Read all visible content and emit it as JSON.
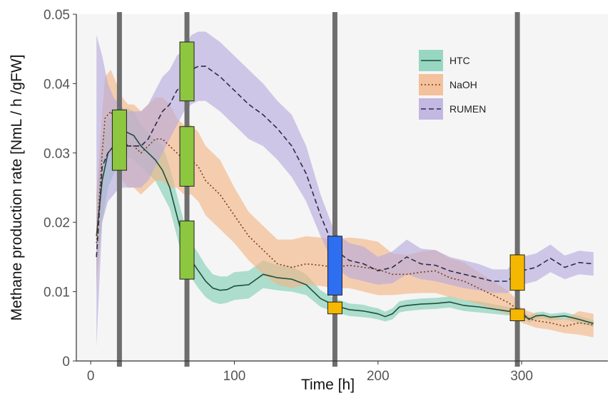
{
  "chart_data": {
    "type": "line",
    "title": "",
    "xlabel": "Time [h]",
    "ylabel": "Methane production rate [NmL / h /gFW]",
    "xlim": [
      -10,
      360
    ],
    "ylim": [
      0,
      0.05
    ],
    "x_ticks": [
      0,
      100,
      200,
      300
    ],
    "x_tick_labels": [
      "0",
      "100",
      "200",
      "300"
    ],
    "y_ticks": [
      0,
      0.01,
      0.02,
      0.03,
      0.04,
      0.05
    ],
    "y_tick_labels": [
      "0",
      "0.01",
      "0.02",
      "0.03",
      "0.04",
      "0.05"
    ],
    "grid": false,
    "background": "#f5f5f5",
    "legend": {
      "position": "top-right",
      "entries": [
        "HTC",
        "NaOH",
        "RUMEN"
      ]
    },
    "vertical_lines": [
      20,
      67,
      170,
      297
    ],
    "series": [
      {
        "name": "HTC",
        "line_color": "#1d4f3c",
        "band_color": "#7fcfb4",
        "dash": "solid",
        "x": [
          4,
          8,
          12,
          16,
          20,
          25,
          30,
          35,
          40,
          45,
          50,
          55,
          60,
          65,
          67,
          70,
          75,
          80,
          85,
          90,
          95,
          100,
          110,
          120,
          130,
          140,
          150,
          160,
          170,
          180,
          190,
          195,
          200,
          205,
          210,
          215,
          220,
          230,
          240,
          250,
          260,
          270,
          280,
          290,
          297,
          300,
          305,
          310,
          315,
          320,
          330,
          340,
          350
        ],
        "y": [
          0.018,
          0.026,
          0.03,
          0.031,
          0.032,
          0.033,
          0.0325,
          0.031,
          0.03,
          0.029,
          0.0275,
          0.025,
          0.021,
          0.017,
          0.016,
          0.0145,
          0.013,
          0.0115,
          0.0105,
          0.0102,
          0.0103,
          0.0108,
          0.011,
          0.0125,
          0.012,
          0.0118,
          0.011,
          0.009,
          0.008,
          0.0074,
          0.0072,
          0.007,
          0.0068,
          0.0064,
          0.0068,
          0.0078,
          0.008,
          0.0082,
          0.0083,
          0.0085,
          0.008,
          0.0078,
          0.0075,
          0.0072,
          0.0071,
          0.007,
          0.006,
          0.0065,
          0.0066,
          0.0063,
          0.0065,
          0.006,
          0.0054
        ],
        "lower": [
          0.012,
          0.02,
          0.025,
          0.027,
          0.028,
          0.0295,
          0.029,
          0.028,
          0.027,
          0.026,
          0.024,
          0.022,
          0.018,
          0.014,
          0.013,
          0.012,
          0.0105,
          0.0092,
          0.0085,
          0.0082,
          0.0084,
          0.0088,
          0.009,
          0.0105,
          0.0102,
          0.01,
          0.0095,
          0.0078,
          0.007,
          0.0065,
          0.0063,
          0.0062,
          0.006,
          0.0057,
          0.006,
          0.007,
          0.0072,
          0.0074,
          0.0075,
          0.0077,
          0.0072,
          0.007,
          0.0068,
          0.0066,
          0.0066,
          0.0065,
          0.0055,
          0.006,
          0.0061,
          0.0058,
          0.006,
          0.0055,
          0.0049
        ],
        "upper": [
          0.024,
          0.032,
          0.035,
          0.035,
          0.036,
          0.0365,
          0.036,
          0.034,
          0.033,
          0.032,
          0.031,
          0.028,
          0.024,
          0.02,
          0.019,
          0.017,
          0.0155,
          0.0138,
          0.0125,
          0.0122,
          0.0122,
          0.0128,
          0.013,
          0.0145,
          0.0138,
          0.0136,
          0.0125,
          0.0102,
          0.009,
          0.0083,
          0.0081,
          0.0078,
          0.0076,
          0.0071,
          0.0076,
          0.0086,
          0.0088,
          0.009,
          0.0091,
          0.0093,
          0.0088,
          0.0086,
          0.0082,
          0.0078,
          0.0076,
          0.0075,
          0.0065,
          0.007,
          0.0071,
          0.0068,
          0.007,
          0.0065,
          0.0059
        ]
      },
      {
        "name": "NaOH",
        "line_color": "#7a3b12",
        "band_color": "#f3b484",
        "dash": "dotted",
        "x": [
          4,
          8,
          10,
          14,
          18,
          22,
          26,
          30,
          35,
          40,
          45,
          50,
          55,
          60,
          65,
          70,
          75,
          80,
          90,
          100,
          110,
          120,
          130,
          140,
          150,
          160,
          170,
          180,
          190,
          200,
          210,
          220,
          230,
          240,
          250,
          260,
          270,
          280,
          290,
          297,
          300,
          310,
          320,
          330,
          340,
          350
        ],
        "y": [
          0.017,
          0.03,
          0.035,
          0.036,
          0.034,
          0.032,
          0.031,
          0.031,
          0.03,
          0.031,
          0.032,
          0.032,
          0.031,
          0.03,
          0.029,
          0.029,
          0.028,
          0.026,
          0.024,
          0.021,
          0.018,
          0.016,
          0.014,
          0.0135,
          0.014,
          0.0138,
          0.0135,
          0.0138,
          0.0135,
          0.0132,
          0.0125,
          0.0125,
          0.0128,
          0.013,
          0.012,
          0.0115,
          0.0105,
          0.0095,
          0.0085,
          0.0075,
          0.0065,
          0.0058,
          0.0055,
          0.005,
          0.0055,
          0.0052
        ],
        "lower": [
          0.01,
          0.024,
          0.029,
          0.03,
          0.028,
          0.026,
          0.025,
          0.025,
          0.024,
          0.025,
          0.026,
          0.026,
          0.025,
          0.025,
          0.024,
          0.024,
          0.023,
          0.021,
          0.019,
          0.017,
          0.0145,
          0.0125,
          0.011,
          0.0105,
          0.011,
          0.0108,
          0.0105,
          0.0105,
          0.01,
          0.0095,
          0.0095,
          0.0097,
          0.0098,
          0.0098,
          0.0092,
          0.0088,
          0.0082,
          0.0075,
          0.0068,
          0.0062,
          0.0055,
          0.0048,
          0.0045,
          0.004,
          0.0038,
          0.0034
        ],
        "upper": [
          0.024,
          0.036,
          0.041,
          0.042,
          0.04,
          0.038,
          0.037,
          0.037,
          0.036,
          0.037,
          0.038,
          0.038,
          0.037,
          0.035,
          0.034,
          0.034,
          0.033,
          0.031,
          0.029,
          0.025,
          0.0215,
          0.0195,
          0.0175,
          0.0175,
          0.018,
          0.0178,
          0.0175,
          0.0178,
          0.0176,
          0.0172,
          0.0155,
          0.0153,
          0.0158,
          0.016,
          0.0148,
          0.0142,
          0.0128,
          0.0115,
          0.0102,
          0.0088,
          0.0075,
          0.0068,
          0.0065,
          0.006,
          0.0072,
          0.0068
        ]
      },
      {
        "name": "RUMEN",
        "line_color": "#2c2c48",
        "band_color": "#b6a9dd",
        "dash": "dashed",
        "x": [
          4,
          8,
          12,
          16,
          20,
          25,
          30,
          35,
          40,
          45,
          50,
          55,
          60,
          65,
          70,
          75,
          80,
          90,
          100,
          110,
          120,
          130,
          140,
          150,
          160,
          170,
          180,
          190,
          200,
          210,
          220,
          230,
          240,
          250,
          260,
          270,
          280,
          290,
          297,
          300,
          310,
          320,
          330,
          340,
          350
        ],
        "y": [
          0.015,
          0.028,
          0.03,
          0.031,
          0.032,
          0.031,
          0.031,
          0.031,
          0.032,
          0.034,
          0.036,
          0.037,
          0.039,
          0.04,
          0.042,
          0.0425,
          0.0425,
          0.041,
          0.039,
          0.037,
          0.0355,
          0.0335,
          0.031,
          0.027,
          0.021,
          0.016,
          0.0145,
          0.014,
          0.013,
          0.0135,
          0.015,
          0.014,
          0.0138,
          0.013,
          0.0125,
          0.012,
          0.0115,
          0.0115,
          0.0128,
          0.013,
          0.0135,
          0.0148,
          0.0135,
          0.0142,
          0.014
        ],
        "lower": [
          0.002,
          0.02,
          0.023,
          0.024,
          0.025,
          0.025,
          0.025,
          0.025,
          0.026,
          0.028,
          0.03,
          0.032,
          0.034,
          0.036,
          0.037,
          0.0375,
          0.0375,
          0.036,
          0.034,
          0.032,
          0.031,
          0.029,
          0.0265,
          0.023,
          0.018,
          0.0135,
          0.012,
          0.0115,
          0.011,
          0.0112,
          0.0125,
          0.0118,
          0.0115,
          0.011,
          0.0105,
          0.0102,
          0.0098,
          0.0098,
          0.0108,
          0.011,
          0.0115,
          0.0128,
          0.0118,
          0.0125,
          0.0123
        ],
        "upper": [
          0.047,
          0.044,
          0.04,
          0.038,
          0.037,
          0.036,
          0.036,
          0.036,
          0.037,
          0.039,
          0.041,
          0.042,
          0.044,
          0.045,
          0.047,
          0.0475,
          0.0475,
          0.046,
          0.044,
          0.042,
          0.04,
          0.0375,
          0.0355,
          0.031,
          0.024,
          0.0185,
          0.017,
          0.0165,
          0.015,
          0.0158,
          0.0175,
          0.0162,
          0.016,
          0.015,
          0.0145,
          0.014,
          0.0132,
          0.0132,
          0.0148,
          0.015,
          0.0155,
          0.0168,
          0.0152,
          0.0159,
          0.0157
        ]
      }
    ],
    "markers": [
      {
        "x": 20,
        "y_low": 0.0275,
        "y_high": 0.0362,
        "color": "#8dc63f"
      },
      {
        "x": 67,
        "y_low": 0.0375,
        "y_high": 0.046,
        "color": "#8dc63f"
      },
      {
        "x": 67,
        "y_low": 0.0252,
        "y_high": 0.0338,
        "color": "#8dc63f"
      },
      {
        "x": 67,
        "y_low": 0.0118,
        "y_high": 0.0202,
        "color": "#8dc63f"
      },
      {
        "x": 170,
        "y_low": 0.0095,
        "y_high": 0.018,
        "color": "#2e6ef0"
      },
      {
        "x": 170,
        "y_low": 0.0068,
        "y_high": 0.0085,
        "color": "#f5b800"
      },
      {
        "x": 297,
        "y_low": 0.0102,
        "y_high": 0.0153,
        "color": "#f5b800"
      },
      {
        "x": 297,
        "y_low": 0.0058,
        "y_high": 0.0075,
        "color": "#f5b800"
      }
    ]
  }
}
